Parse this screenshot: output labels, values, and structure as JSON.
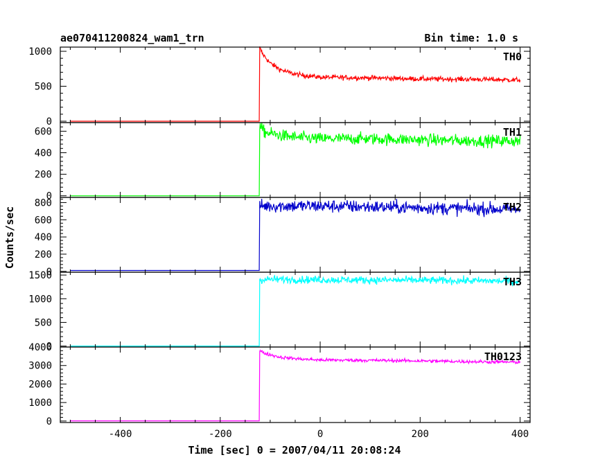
{
  "chart_data": {
    "type": "line",
    "title": "ae070411200824_wam1_trn",
    "bin_time": "Bin time: 1.0 s",
    "xlabel": "Time [sec] 0 = 2007/04/11 20:08:24",
    "ylabel": "Counts/sec",
    "xlim": [
      -520,
      420
    ],
    "x_ticks": [
      -400,
      -200,
      0,
      200,
      400
    ],
    "grid": false,
    "panels": [
      {
        "name": "TH0",
        "color": "#ff0000",
        "ylim": [
          -20,
          1060
        ],
        "y_ticks": [
          0,
          500,
          1000
        ],
        "data_range": [
          -500,
          400
        ],
        "onset": -122,
        "pre_level": 0,
        "noise": 18,
        "points": [
          [
            -121,
            1050
          ],
          [
            -115,
            960
          ],
          [
            -100,
            830
          ],
          [
            -80,
            740
          ],
          [
            -60,
            690
          ],
          [
            -40,
            660
          ],
          [
            0,
            630
          ],
          [
            100,
            620
          ],
          [
            200,
            605
          ],
          [
            300,
            600
          ],
          [
            400,
            590
          ]
        ]
      },
      {
        "name": "TH1",
        "color": "#00ff00",
        "ylim": [
          -15,
          680
        ],
        "y_ticks": [
          0,
          200,
          400,
          600
        ],
        "data_range": [
          -500,
          400
        ],
        "onset": -122,
        "pre_level": 0,
        "noise": 28,
        "points": [
          [
            -121,
            640
          ],
          [
            -110,
            590
          ],
          [
            -80,
            560
          ],
          [
            -40,
            540
          ],
          [
            0,
            530
          ],
          [
            100,
            530
          ],
          [
            200,
            520
          ],
          [
            300,
            510
          ],
          [
            400,
            510
          ]
        ]
      },
      {
        "name": "TH2",
        "color": "#0000cc",
        "ylim": [
          -10,
          860
        ],
        "y_ticks": [
          0,
          200,
          400,
          600,
          800
        ],
        "data_range": [
          -500,
          400
        ],
        "onset": -122,
        "pre_level": 10,
        "noise": 38,
        "points": [
          [
            -121,
            760
          ],
          [
            -100,
            760
          ],
          [
            0,
            760
          ],
          [
            100,
            750
          ],
          [
            200,
            740
          ],
          [
            300,
            730
          ],
          [
            400,
            720
          ]
        ]
      },
      {
        "name": "TH3",
        "color": "#00ffff",
        "ylim": [
          -20,
          1560
        ],
        "y_ticks": [
          0,
          500,
          1000,
          1500
        ],
        "data_range": [
          -500,
          400
        ],
        "onset": -122,
        "pre_level": 0,
        "noise": 40,
        "points": [
          [
            -121,
            1400
          ],
          [
            -100,
            1410
          ],
          [
            0,
            1400
          ],
          [
            100,
            1395
          ],
          [
            200,
            1390
          ],
          [
            300,
            1380
          ],
          [
            400,
            1370
          ]
        ]
      },
      {
        "name": "TH0123",
        "color": "#ff00ff",
        "ylim": [
          -80,
          4000
        ],
        "y_ticks": [
          0,
          1000,
          2000,
          3000,
          4000
        ],
        "data_range": [
          -500,
          400
        ],
        "onset": -122,
        "pre_level": 10,
        "noise": 45,
        "points": [
          [
            -121,
            3800
          ],
          [
            -110,
            3650
          ],
          [
            -80,
            3450
          ],
          [
            -40,
            3350
          ],
          [
            0,
            3300
          ],
          [
            100,
            3280
          ],
          [
            200,
            3250
          ],
          [
            300,
            3210
          ],
          [
            400,
            3180
          ]
        ]
      }
    ]
  }
}
